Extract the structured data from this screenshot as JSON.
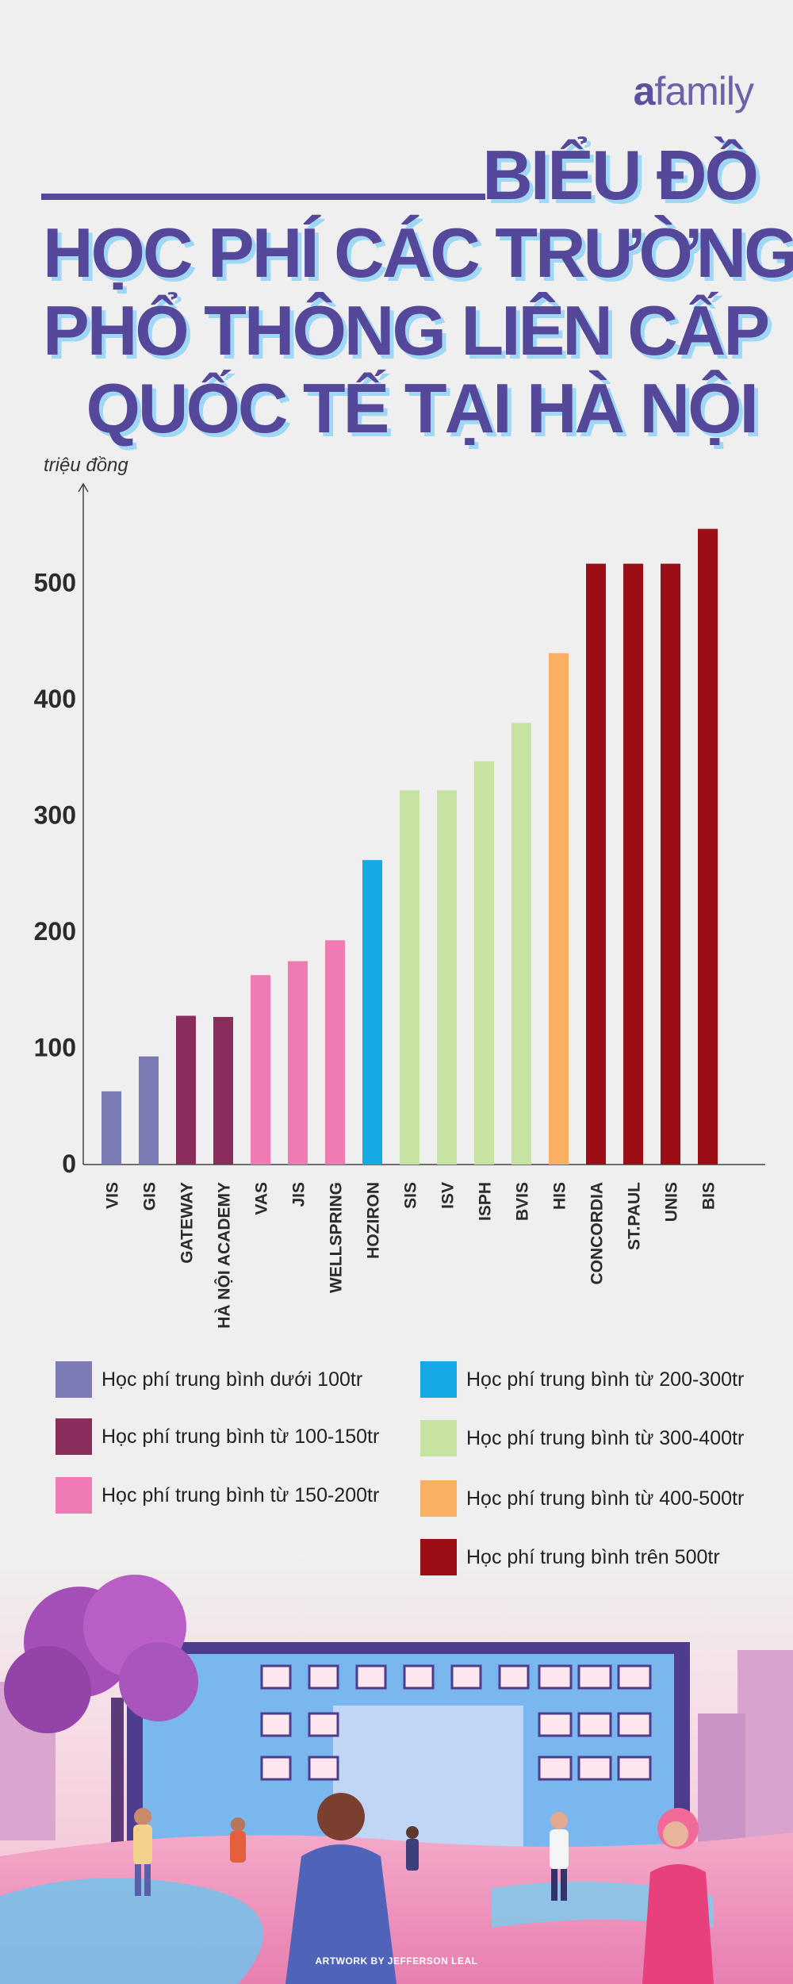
{
  "brand": {
    "prefix": "a",
    "name": "family"
  },
  "title": {
    "line1": "BIỂU ĐỒ",
    "line2": "HỌC PHÍ CÁC TRƯỜNG",
    "line3": "PHỔ THÔNG LIÊN CẤP",
    "line4": "QUỐC TẾ TẠI HÀ NỘI"
  },
  "colors": {
    "title": "#55479a",
    "title_shadow": "#9fd8f5",
    "under_100": "#7b7bb5",
    "from_100_150": "#8a2d5c",
    "from_150_200": "#f07ab4",
    "from_200_300": "#17a9e6",
    "from_300_400": "#c7e3a2",
    "from_400_500": "#f9b062",
    "over_500": "#9b0e16"
  },
  "chart_data": {
    "type": "bar",
    "ylabel": "triệu đồng",
    "ylim": [
      0,
      550
    ],
    "yticks": [
      0,
      100,
      200,
      300,
      400,
      500
    ],
    "categories": [
      "VIS",
      "GIS",
      "GATEWAY",
      "HÀ NỘI ACADEMY",
      "VAS",
      "JIS",
      "WELLSPRING",
      "HOZIRON",
      "SIS",
      "ISV",
      "ISPH",
      "BVIS",
      "HIS",
      "CONCORDIA",
      "ST.PAUL",
      "UNIS",
      "BIS"
    ],
    "values": [
      63,
      93,
      128,
      127,
      163,
      175,
      193,
      262,
      322,
      322,
      347,
      380,
      440,
      517,
      517,
      517,
      547
    ],
    "groups": [
      "under_100",
      "under_100",
      "from_100_150",
      "from_100_150",
      "from_150_200",
      "from_150_200",
      "from_150_200",
      "from_200_300",
      "from_300_400",
      "from_300_400",
      "from_300_400",
      "from_300_400",
      "from_400_500",
      "over_500",
      "over_500",
      "over_500",
      "over_500"
    ],
    "legend": [
      {
        "group": "under_100",
        "label": "Học phí trung bình dưới 100tr"
      },
      {
        "group": "from_100_150",
        "label": "Học phí trung bình từ 100-150tr"
      },
      {
        "group": "from_150_200",
        "label": "Học phí trung bình từ 150-200tr"
      },
      {
        "group": "from_200_300",
        "label": "Học phí trung bình từ 200-300tr"
      },
      {
        "group": "from_300_400",
        "label": "Học phí trung bình từ 300-400tr"
      },
      {
        "group": "from_400_500",
        "label": "Học phí trung bình từ 400-500tr"
      },
      {
        "group": "over_500",
        "label": "Học phí trung bình trên 500tr"
      }
    ]
  },
  "footer": {
    "credit": "ARTWORK BY JEFFERSON LEAL"
  }
}
